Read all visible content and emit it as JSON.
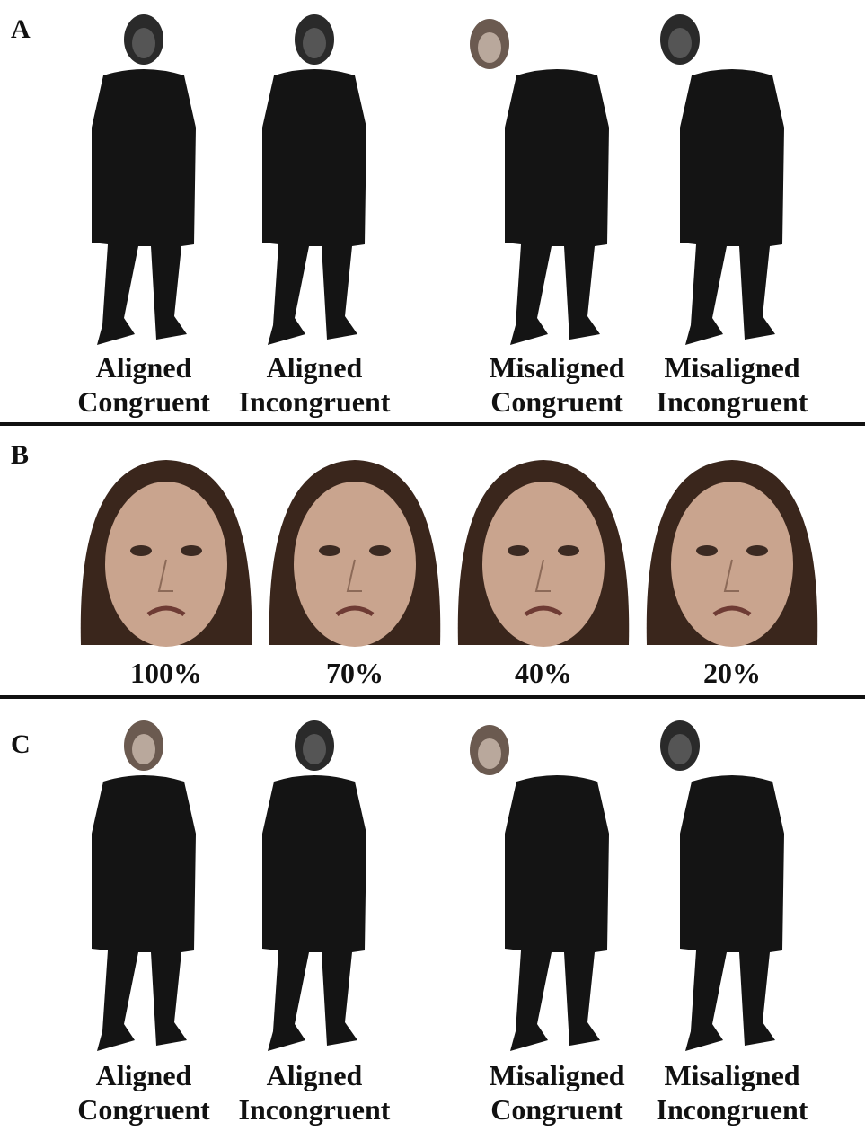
{
  "panels": [
    {
      "label": "A",
      "items": [
        {
          "line1": "Aligned",
          "line2": "Congruent"
        },
        {
          "line1": "Aligned",
          "line2": "Incongruent"
        },
        {
          "line1": "Misaligned",
          "line2": "Congruent"
        },
        {
          "line1": "Misaligned",
          "line2": "Incongruent"
        }
      ]
    },
    {
      "label": "B",
      "items": [
        "100%",
        "70%",
        "40%",
        "20%"
      ]
    },
    {
      "label": "C",
      "items": [
        {
          "line1": "Aligned",
          "line2": "Congruent"
        },
        {
          "line1": "Aligned",
          "line2": "Incongruent"
        },
        {
          "line1": "Misaligned",
          "line2": "Congruent"
        },
        {
          "line1": "Misaligned",
          "line2": "Incongruent"
        }
      ]
    }
  ]
}
